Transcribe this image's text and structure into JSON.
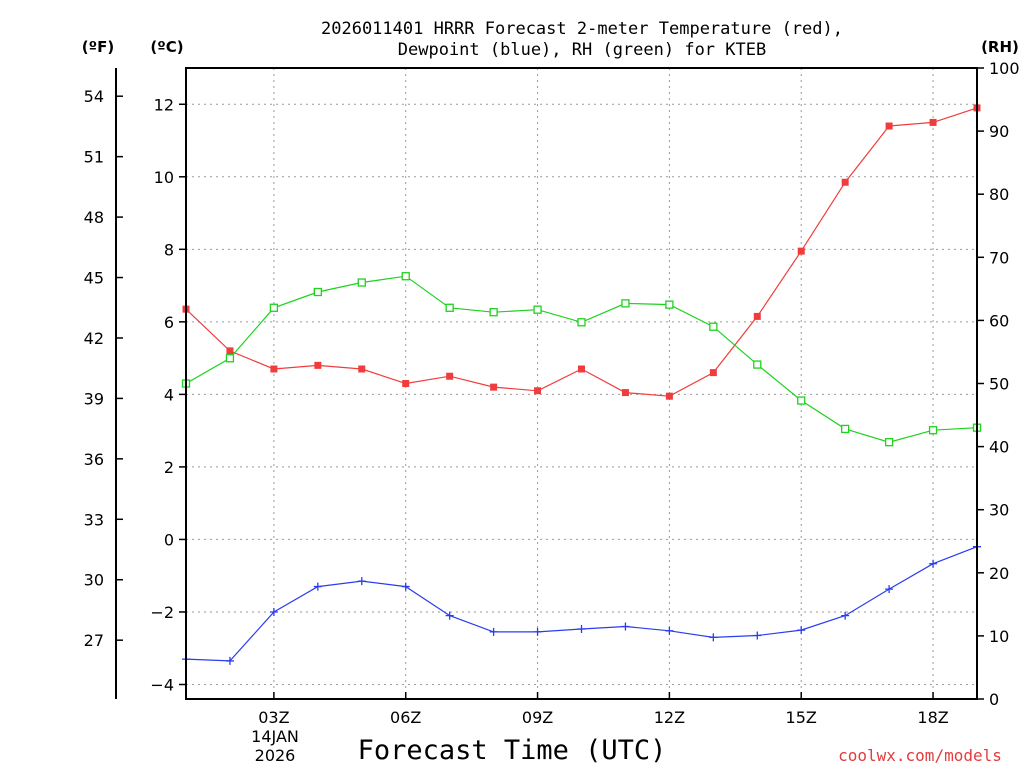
{
  "chart_data": {
    "type": "line",
    "title_line1": "2026011401 HRRR Forecast 2-meter Temperature (red),",
    "title_line2": "Dewpoint (blue), RH (green) for KTEB",
    "xlabel": "Forecast Time (UTC)",
    "credit": "coolwx.com/models",
    "date_label_line1": "14JAN",
    "date_label_line2": "2026",
    "unit_left_outer": "(ºF)",
    "unit_left_inner": "(ºC)",
    "unit_right": "(RH)",
    "x_hours": [
      1,
      2,
      3,
      4,
      5,
      6,
      7,
      8,
      9,
      10,
      11,
      12,
      13,
      14,
      15,
      16,
      17,
      18,
      19
    ],
    "xlim": [
      1,
      19
    ],
    "x_ticks": [
      {
        "hour": 3,
        "label": "03Z"
      },
      {
        "hour": 6,
        "label": "06Z"
      },
      {
        "hour": 9,
        "label": "09Z"
      },
      {
        "hour": 12,
        "label": "12Z"
      },
      {
        "hour": 15,
        "label": "15Z"
      },
      {
        "hour": 18,
        "label": "18Z"
      }
    ],
    "celsius_axis": {
      "range": [
        -4.4,
        13.0
      ],
      "ticks": [
        -4,
        -2,
        0,
        2,
        4,
        6,
        8,
        10,
        12
      ]
    },
    "fahrenheit_axis": {
      "ticks": [
        27,
        30,
        33,
        36,
        39,
        42,
        45,
        48,
        51,
        54
      ]
    },
    "rh_axis": {
      "range": [
        0,
        100
      ],
      "ticks": [
        0,
        10,
        20,
        30,
        40,
        50,
        60,
        70,
        80,
        90,
        100
      ]
    },
    "series": [
      {
        "name": "Temperature",
        "unit": "C",
        "color": "#f03c3c",
        "marker": "filled-square",
        "values": [
          6.35,
          5.2,
          4.7,
          4.8,
          4.7,
          4.3,
          4.5,
          4.2,
          4.1,
          4.7,
          4.05,
          3.95,
          4.6,
          6.15,
          7.95,
          9.85,
          11.4,
          11.5,
          11.9
        ]
      },
      {
        "name": "Dewpoint",
        "unit": "C",
        "color": "#2a3cf0",
        "marker": "plus",
        "values": [
          -3.3,
          -3.35,
          -2.0,
          -1.3,
          -1.15,
          -1.3,
          -2.1,
          -2.55,
          -2.55,
          -2.47,
          -2.4,
          -2.52,
          -2.7,
          -2.65,
          -2.5,
          -2.1,
          -1.37,
          -0.67,
          -0.2
        ]
      },
      {
        "name": "RH",
        "unit": "%",
        "color": "#1ed21e",
        "marker": "open-square",
        "values": [
          50,
          54,
          62,
          64.5,
          66,
          67,
          62,
          61.3,
          61.7,
          59.7,
          62.7,
          62.5,
          59,
          53,
          47.3,
          42.8,
          40.7,
          42.6,
          43
        ]
      }
    ]
  }
}
